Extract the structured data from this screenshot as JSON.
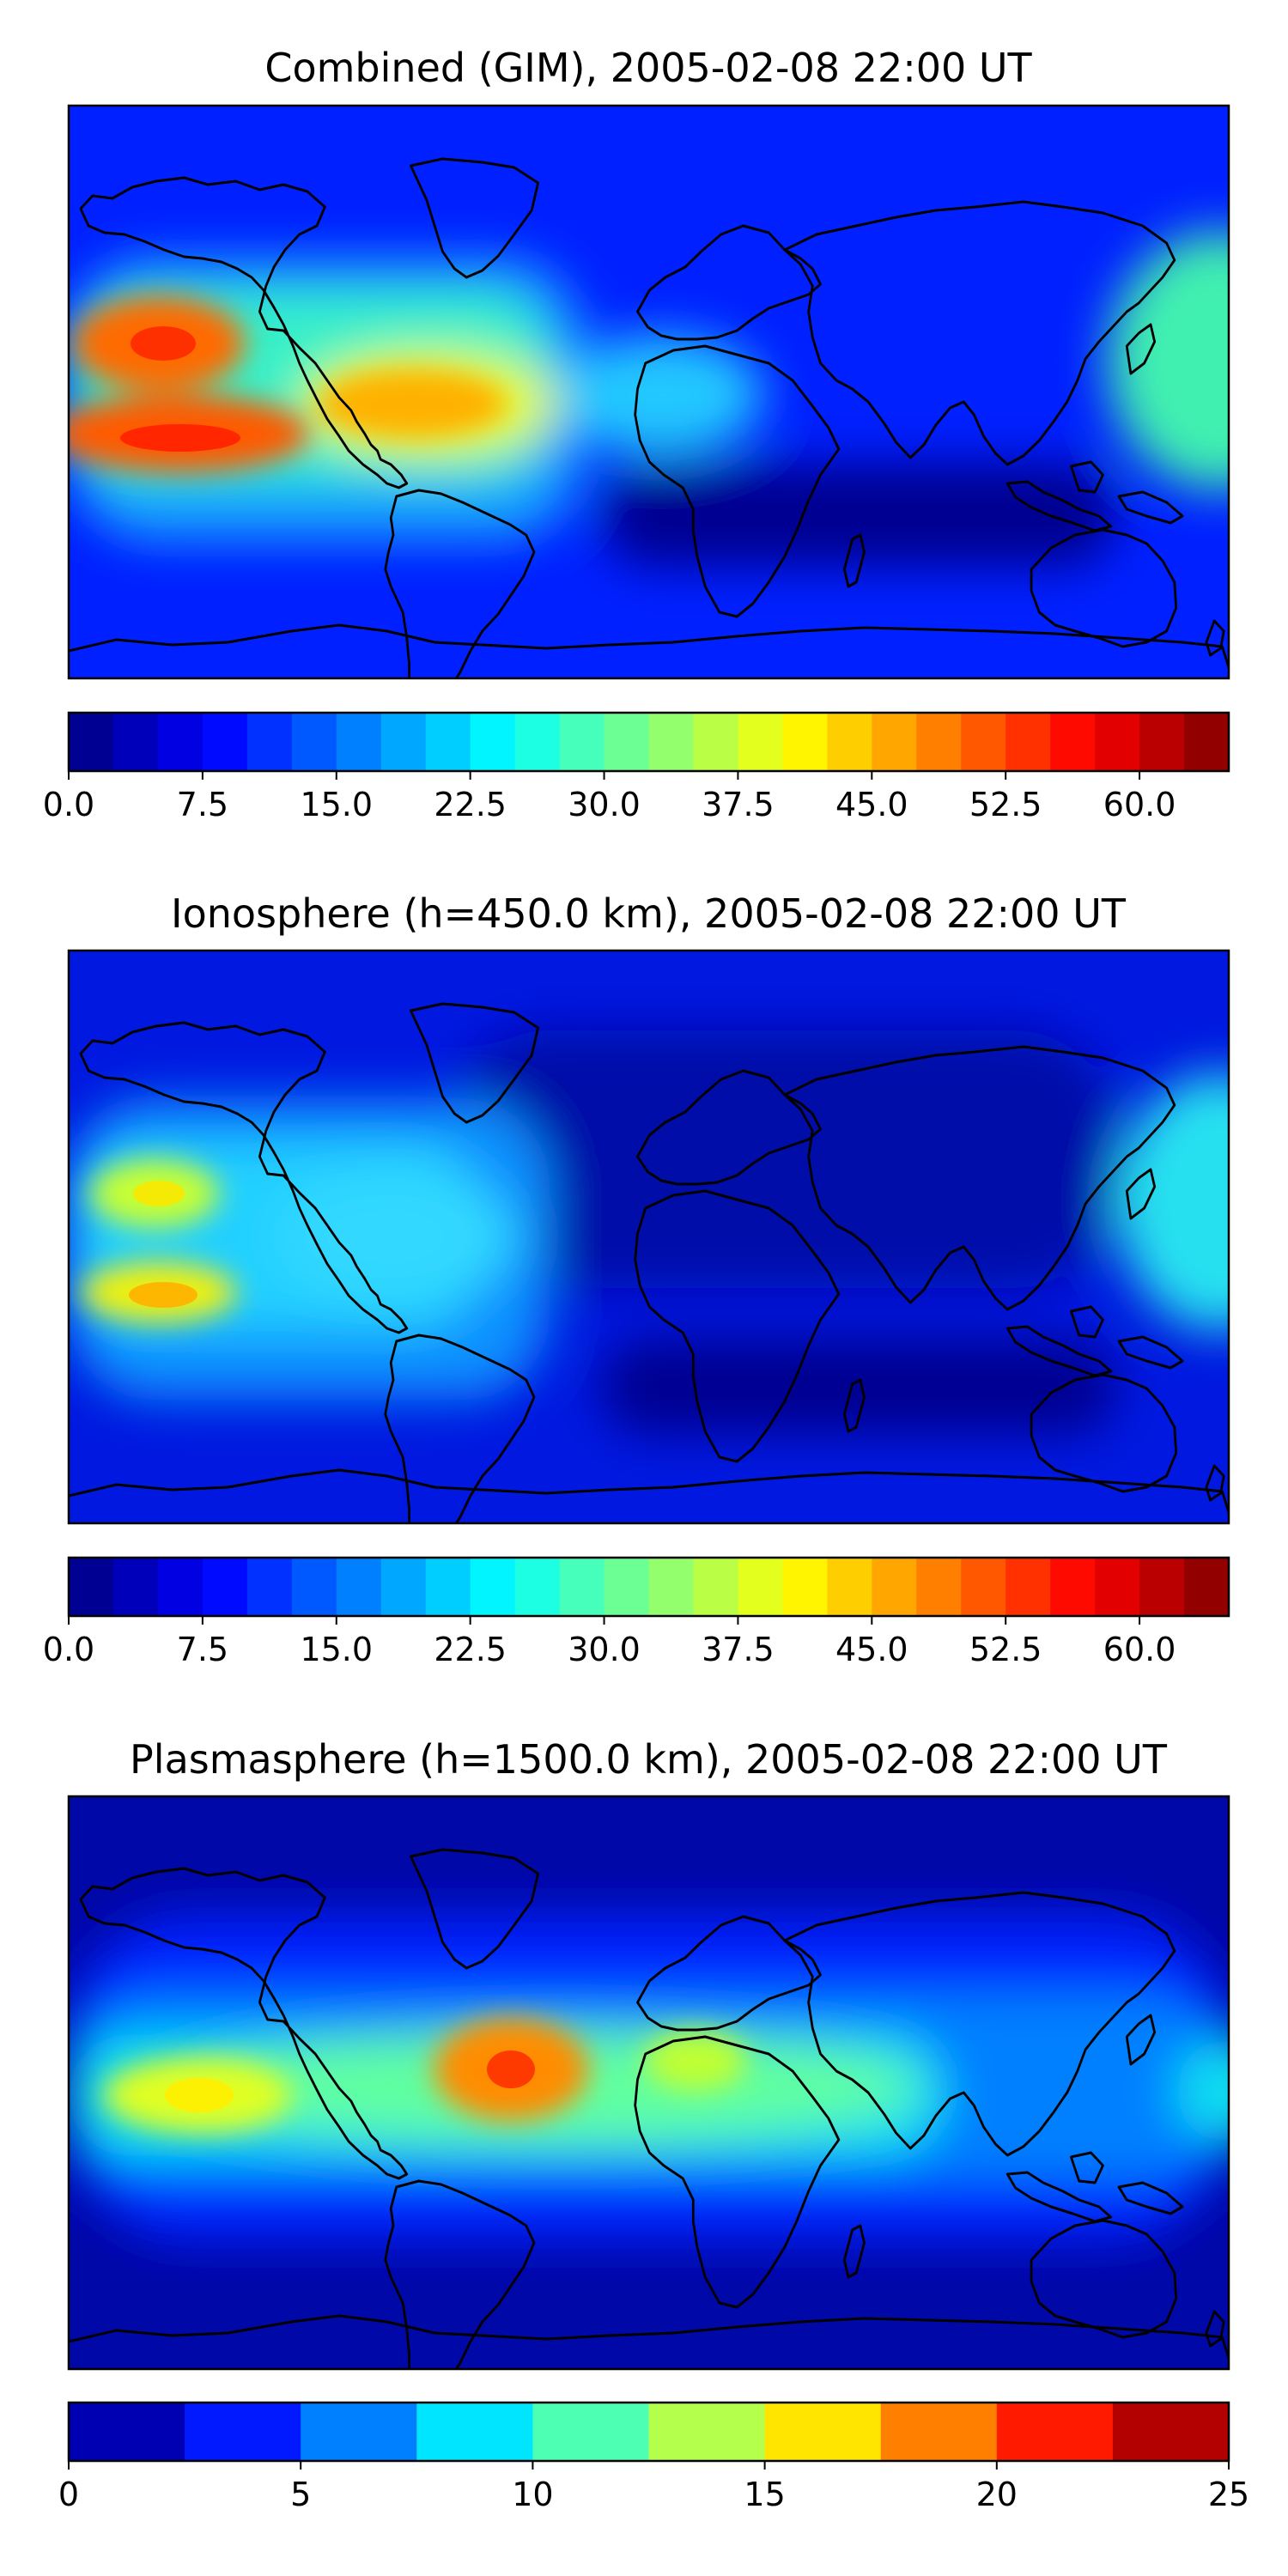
{
  "chart_data": [
    {
      "type": "heatmap",
      "title": "Combined (GIM), 2005-02-08 22:00 UT",
      "quantity_range": [
        0,
        65
      ],
      "colorbar": {
        "levels": 26,
        "vmin": 0,
        "vmax": 65,
        "ticks": [
          0,
          7.5,
          15,
          22.5,
          30,
          37.5,
          45,
          52.5,
          60
        ],
        "tick_labels": [
          "0.0",
          "7.5",
          "15.0",
          "22.5",
          "30.0",
          "37.5",
          "45.0",
          "52.5",
          "60.0"
        ]
      },
      "grid": false,
      "colormap": "jet",
      "notable_regions": [
        {
          "lon": -170,
          "lat": 10,
          "value": 55
        },
        {
          "lon": -160,
          "lat": -5,
          "value": 57
        },
        {
          "lon": -75,
          "lat": 5,
          "value": 45
        },
        {
          "lon": -100,
          "lat": -5,
          "value": 42
        },
        {
          "lon": 180,
          "lat": 5,
          "value": 30
        },
        {
          "lon": 15,
          "lat": 0,
          "value": 27
        },
        {
          "lon": 20,
          "lat": -40,
          "value": 3
        }
      ]
    },
    {
      "type": "heatmap",
      "title": "Ionosphere  (h=450.0 km), 2005-02-08 22:00 UT",
      "quantity_range": [
        0,
        65
      ],
      "colorbar": {
        "levels": 26,
        "vmin": 0,
        "vmax": 65,
        "ticks": [
          0,
          7.5,
          15,
          22.5,
          30,
          37.5,
          45,
          52.5,
          60
        ],
        "tick_labels": [
          "0.0",
          "7.5",
          "15.0",
          "22.5",
          "30.0",
          "37.5",
          "45.0",
          "52.5",
          "60.0"
        ]
      },
      "grid": false,
      "colormap": "jet",
      "notable_regions": [
        {
          "lon": -165,
          "lat": 10,
          "value": 37
        },
        {
          "lon": -160,
          "lat": -5,
          "value": 41
        },
        {
          "lon": -90,
          "lat": 0,
          "value": 22
        },
        {
          "lon": 180,
          "lat": 5,
          "value": 24
        },
        {
          "lon": 30,
          "lat": 10,
          "value": 4
        }
      ]
    },
    {
      "type": "heatmap",
      "title": "Plasmasphere (h=1500.0 km), 2005-02-08 22:00 UT",
      "quantity_range": [
        0,
        25
      ],
      "colorbar": {
        "levels": 10,
        "vmin": 0,
        "vmax": 25,
        "ticks": [
          0,
          5,
          10,
          15,
          20,
          25
        ],
        "tick_labels": [
          "0",
          "5",
          "10",
          "15",
          "20",
          "25"
        ]
      },
      "grid": false,
      "colormap": "jet",
      "notable_regions": [
        {
          "lon": -55,
          "lat": 0,
          "value": 22
        },
        {
          "lon": -160,
          "lat": -5,
          "value": 16
        },
        {
          "lon": 5,
          "lat": 5,
          "value": 14
        },
        {
          "lon": 180,
          "lat": -3,
          "value": 10
        },
        {
          "lon": 60,
          "lat": -55,
          "value": 2
        }
      ]
    }
  ]
}
